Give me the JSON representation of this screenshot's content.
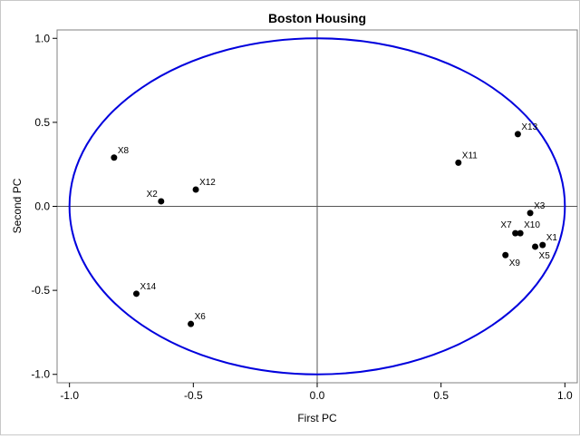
{
  "chart_data": {
    "type": "scatter",
    "title": "Boston Housing",
    "xlabel": "First PC",
    "ylabel": "Second PC",
    "xlim": [
      -1.05,
      1.05
    ],
    "ylim": [
      -1.05,
      1.05
    ],
    "xticks": [
      "-1.0",
      "-0.5",
      "0.0",
      "0.5",
      "1.0"
    ],
    "yticks": [
      "-1.0",
      "-0.5",
      "0.0",
      "0.5",
      "1.0"
    ],
    "grid": false,
    "reference_lines": {
      "x": 0,
      "y": 0
    },
    "circle": {
      "radius": 1,
      "color": "#0000dd"
    },
    "point_color": "#000000",
    "points": [
      {
        "label": "X1",
        "x": 0.91,
        "y": -0.23
      },
      {
        "label": "X2",
        "x": -0.63,
        "y": 0.03
      },
      {
        "label": "X3",
        "x": 0.86,
        "y": -0.04
      },
      {
        "label": "X5",
        "x": 0.88,
        "y": -0.24
      },
      {
        "label": "X6",
        "x": -0.51,
        "y": -0.7
      },
      {
        "label": "X7",
        "x": 0.8,
        "y": -0.16
      },
      {
        "label": "X8",
        "x": -0.82,
        "y": 0.29
      },
      {
        "label": "X9",
        "x": 0.76,
        "y": -0.29
      },
      {
        "label": "X10",
        "x": 0.82,
        "y": -0.16
      },
      {
        "label": "X11",
        "x": 0.57,
        "y": 0.26
      },
      {
        "label": "X12",
        "x": -0.49,
        "y": 0.1
      },
      {
        "label": "X13",
        "x": 0.81,
        "y": 0.43
      },
      {
        "label": "X14",
        "x": -0.73,
        "y": -0.52
      }
    ]
  }
}
